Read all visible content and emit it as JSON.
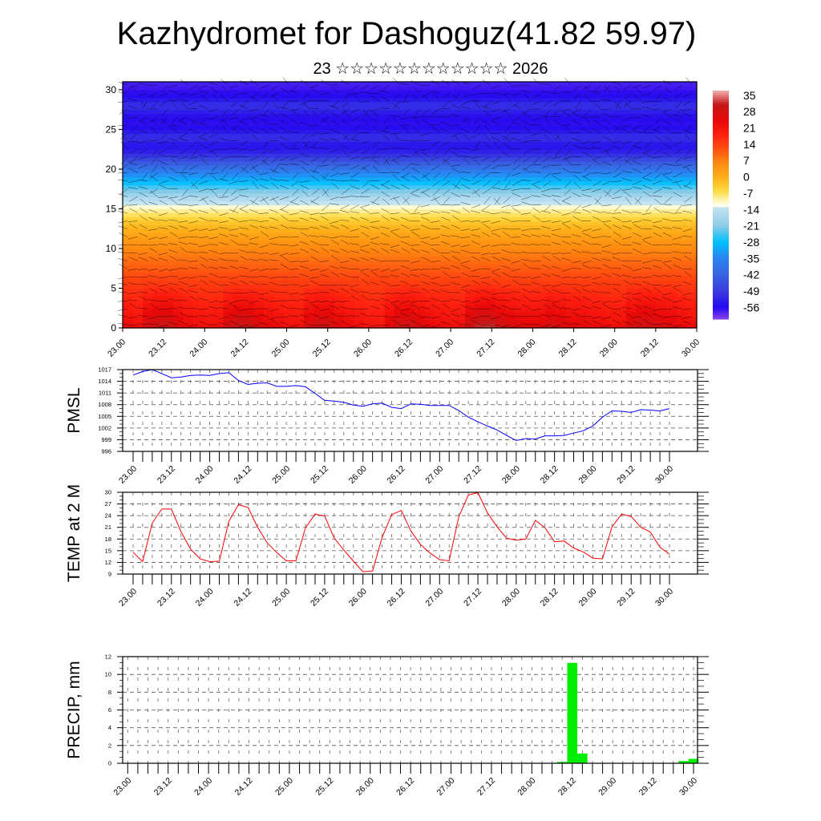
{
  "title": "Kazhydromet for Dashoguz(41.82 59.97)",
  "subtitle": "23 ☆☆☆☆☆☆☆☆☆☆☆☆ 2026",
  "chart_data": [
    {
      "type": "heatmap",
      "name": "vertical-cross-section",
      "ylim": [
        0,
        31
      ],
      "yticks": [
        "0",
        "5",
        "10",
        "15",
        "20",
        "25",
        "30"
      ],
      "ytick_values": [
        0,
        5,
        10,
        15,
        20,
        25,
        30
      ],
      "xtick_labels": [
        "23.00",
        "23.12",
        "24.00",
        "24.12",
        "25.00",
        "25.12",
        "26.00",
        "26.12",
        "27.00",
        "27.12",
        "28.00",
        "28.12",
        "29.00",
        "29.12",
        "30.00"
      ],
      "profile_heights": [
        0,
        1,
        2,
        3,
        4,
        5,
        6,
        7,
        8,
        9,
        10,
        11,
        12,
        13,
        14,
        15,
        16,
        17,
        18,
        19,
        20,
        21,
        22,
        23,
        24,
        25,
        26,
        27,
        28,
        29,
        30,
        31
      ],
      "profile_values": [
        26,
        24,
        22,
        20,
        18,
        16,
        14,
        12,
        10,
        8,
        6,
        4,
        1,
        -2,
        -6,
        -10,
        -14,
        -20,
        -26,
        -32,
        -38,
        -45,
        -52,
        -55,
        -50,
        -55,
        -57,
        -54,
        -50,
        -55,
        -57,
        -58
      ],
      "colorbar": {
        "labels": [
          "35",
          "28",
          "21",
          "14",
          "7",
          "0",
          "-7",
          "-14",
          "-21",
          "-28",
          "-35",
          "-42",
          "-49",
          "-56"
        ],
        "range": [
          -61,
          37
        ],
        "stops": [
          [
            37,
            "#f4b0b0"
          ],
          [
            31,
            "#c41818"
          ],
          [
            24,
            "#e80808"
          ],
          [
            18,
            "#ff2010"
          ],
          [
            12,
            "#ff5010"
          ],
          [
            6,
            "#ff8a10"
          ],
          [
            0,
            "#ffae18"
          ],
          [
            -6,
            "#ffda40"
          ],
          [
            -11,
            "#fffbd0"
          ],
          [
            -12.5,
            "#fffff0"
          ],
          [
            -13,
            "#c4e4f2"
          ],
          [
            -21,
            "#8ccbe6"
          ],
          [
            -28,
            "#00c0ff"
          ],
          [
            -35,
            "#2a84f2"
          ],
          [
            -42,
            "#3864e0"
          ],
          [
            -49,
            "#3a3ce0"
          ],
          [
            -56,
            "#2408f0"
          ],
          [
            -61,
            "#8a44f0"
          ]
        ]
      }
    },
    {
      "type": "line",
      "name": "pmsl",
      "ylabel": "PMSL",
      "color": "#0000ff",
      "ylim": [
        996,
        1017
      ],
      "yticks": [
        "996",
        "999",
        "1002",
        "1005",
        "1008",
        "1011",
        "1014",
        "1017"
      ],
      "ytick_values": [
        996,
        999,
        1002,
        1005,
        1008,
        1011,
        1014,
        1017
      ],
      "xtick_labels": [
        "23.00",
        "23.12",
        "24.00",
        "24.12",
        "25.00",
        "25.12",
        "26.00",
        "26.12",
        "27.00",
        "27.12",
        "28.00",
        "28.12",
        "29.00",
        "29.12",
        "30.00"
      ],
      "step_hours": 3,
      "values": [
        1015.6,
        1016.5,
        1017,
        1016,
        1014.9,
        1015.1,
        1015.5,
        1015.6,
        1015.5,
        1016,
        1016.2,
        1014.2,
        1013.2,
        1013.5,
        1013.6,
        1012.7,
        1012.7,
        1012.9,
        1012.6,
        1010.9,
        1009.1,
        1008.9,
        1008.6,
        1007.9,
        1007.6,
        1008.2,
        1008.4,
        1007.3,
        1007,
        1008.2,
        1008.1,
        1007.8,
        1007.8,
        1007.8,
        1006.5,
        1004.8,
        1003.6,
        1002.5,
        1001.5,
        1000.1,
        998.8,
        999.3,
        999.2,
        1000,
        1000,
        1000.1,
        1000.7,
        1001.3,
        1002.5,
        1004.8,
        1006.4,
        1006.3,
        1006,
        1006.7,
        1006.6,
        1006.4,
        1007
      ]
    },
    {
      "type": "line",
      "name": "temp-2m",
      "ylabel": "TEMP at 2 M",
      "color": "#ff0000",
      "ylim": [
        9,
        30
      ],
      "yticks": [
        "9",
        "12",
        "15",
        "18",
        "21",
        "24",
        "27",
        "30"
      ],
      "ytick_values": [
        9,
        12,
        15,
        18,
        21,
        24,
        27,
        30
      ],
      "xtick_labels": [
        "23.00",
        "23.12",
        "24.00",
        "24.12",
        "25.00",
        "25.12",
        "26.00",
        "26.12",
        "27.00",
        "27.12",
        "28.00",
        "28.12",
        "29.00",
        "29.12",
        "30.00"
      ],
      "step_hours": 3,
      "values": [
        14.6,
        12.2,
        22.1,
        25.7,
        25.7,
        19.9,
        15.4,
        12.9,
        12.2,
        12.3,
        22.6,
        26.8,
        26.1,
        21,
        17,
        14.5,
        12.4,
        12.4,
        20.9,
        24.4,
        23.9,
        18.2,
        15.2,
        12.3,
        9.6,
        9.8,
        18.4,
        24.3,
        25.3,
        20.1,
        16.6,
        14.4,
        12.7,
        12.4,
        23.7,
        29.3,
        29.9,
        24.7,
        21.1,
        18.2,
        17.7,
        18,
        22.8,
        20.9,
        17.3,
        17.5,
        15.7,
        14.7,
        13.1,
        12.9,
        21.1,
        24.4,
        23.8,
        21,
        19.8,
        15.9,
        14.1
      ]
    },
    {
      "type": "bar",
      "name": "precip",
      "ylabel": "PRECIP, mm",
      "color": "#00ee00",
      "ylim": [
        0,
        12
      ],
      "yticks": [
        "0",
        "2",
        "4",
        "6",
        "8",
        "10",
        "12"
      ],
      "ytick_values": [
        0,
        2,
        4,
        6,
        8,
        10,
        12
      ],
      "xtick_labels": [
        "23.00",
        "23.12",
        "24.00",
        "24.12",
        "25.00",
        "25.12",
        "26.00",
        "26.12",
        "27.00",
        "27.12",
        "28.00",
        "28.12",
        "29.00",
        "29.12",
        "30.00"
      ],
      "step_hours": 3,
      "values": [
        0,
        0,
        0,
        0,
        0,
        0,
        0,
        0,
        0,
        0,
        0,
        0,
        0,
        0,
        0,
        0,
        0,
        0,
        0,
        0,
        0,
        0,
        0,
        0,
        0,
        0,
        0,
        0,
        0,
        0,
        0,
        0,
        0,
        0,
        0,
        0,
        0,
        0,
        0,
        0,
        0.03,
        0,
        0.02,
        0.15,
        11.3,
        1.1,
        0.02,
        0,
        0,
        0,
        0,
        0,
        0,
        0,
        0.03,
        0.25,
        0.5
      ]
    }
  ]
}
